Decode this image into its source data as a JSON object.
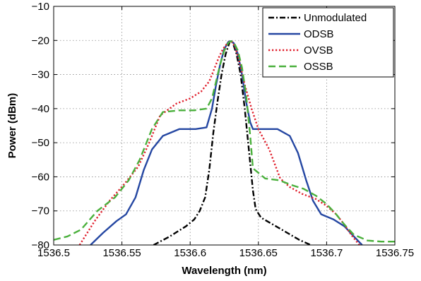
{
  "chart_data": {
    "type": "line",
    "title": "",
    "xlabel": "Wavelength (nm)",
    "ylabel": "Power (dBm)",
    "xlim": [
      1536.5,
      1536.75
    ],
    "ylim": [
      -80,
      -10
    ],
    "xticks": [
      1536.5,
      1536.55,
      1536.6,
      1536.65,
      1536.7,
      1536.75
    ],
    "xtick_labels": [
      "1536.5",
      "1536.55",
      "1536.6",
      "1536.65",
      "1536.7",
      "1536.75"
    ],
    "yticks": [
      -80,
      -70,
      -60,
      -50,
      -40,
      -30,
      -20,
      -10
    ],
    "ytick_labels": [
      "−80",
      "−70",
      "−60",
      "−50",
      "−40",
      "−30",
      "−20",
      "−10"
    ],
    "grid": true,
    "legend_position": "top-right",
    "series": [
      {
        "name": "Unmodulated",
        "color": "#000000",
        "style": "dashdot",
        "x": [
          1536.5732,
          1536.585,
          1536.597,
          1536.603,
          1536.607,
          1536.611,
          1536.614,
          1536.617,
          1536.62,
          1536.623,
          1536.626,
          1536.629,
          1536.63,
          1536.631,
          1536.634,
          1536.637,
          1536.64,
          1536.643,
          1536.646,
          1536.648,
          1536.652,
          1536.665,
          1536.68,
          1536.6883
        ],
        "y": [
          -80,
          -77.5,
          -74.5,
          -72.5,
          -70,
          -66,
          -58,
          -47,
          -38,
          -30,
          -24,
          -20.4,
          -20.2,
          -20.4,
          -24,
          -30,
          -40,
          -52,
          -64,
          -69.5,
          -72,
          -75,
          -78.5,
          -80
        ]
      },
      {
        "name": "ODSB",
        "color": "#2547a2",
        "style": "solid",
        "x": [
          1536.527,
          1536.536,
          1536.546,
          1536.553,
          1536.56,
          1536.566,
          1536.572,
          1536.58,
          1536.592,
          1536.604,
          1536.612,
          1536.616,
          1536.619,
          1536.622,
          1536.625,
          1536.628,
          1536.63,
          1536.632,
          1536.635,
          1536.638,
          1536.641,
          1536.644,
          1536.646,
          1536.65,
          1536.664,
          1536.673,
          1536.679,
          1536.685,
          1536.69,
          1536.696,
          1536.705,
          1536.713,
          1536.72,
          1536.726
        ],
        "y": [
          -80,
          -76.5,
          -73,
          -71,
          -66,
          -58,
          -52,
          -48,
          -46,
          -46,
          -45.5,
          -40,
          -33,
          -27,
          -22.5,
          -20.4,
          -20.2,
          -20.8,
          -24,
          -30,
          -38,
          -44,
          -46,
          -46,
          -46,
          -48,
          -53,
          -61,
          -67,
          -71,
          -72.5,
          -74.5,
          -77.5,
          -80
        ]
      },
      {
        "name": "OVSB",
        "color": "#e0202d",
        "style": "dotted",
        "x": [
          1536.519,
          1536.53,
          1536.541,
          1536.552,
          1536.562,
          1536.57,
          1536.578,
          1536.59,
          1536.6,
          1536.608,
          1536.614,
          1536.618,
          1536.621,
          1536.624,
          1536.627,
          1536.629,
          1536.631,
          1536.633,
          1536.636,
          1536.64,
          1536.645,
          1536.65,
          1536.658,
          1536.666,
          1536.673,
          1536.682,
          1536.692,
          1536.7,
          1536.707,
          1536.713,
          1536.718,
          1536.724
        ],
        "y": [
          -80,
          -73,
          -67,
          -62,
          -57,
          -50,
          -42,
          -38.5,
          -37,
          -35,
          -32,
          -28,
          -25,
          -22.5,
          -21,
          -20.3,
          -20.5,
          -22,
          -26,
          -33,
          -40,
          -46,
          -52,
          -60.5,
          -63,
          -65,
          -66.5,
          -68.5,
          -71,
          -74,
          -77,
          -80
        ]
      },
      {
        "name": "OSSB",
        "color": "#4ab03c",
        "style": "dashed",
        "x": [
          1536.5,
          1536.51,
          1536.52,
          1536.532,
          1536.545,
          1536.555,
          1536.563,
          1536.572,
          1536.58,
          1536.592,
          1536.603,
          1536.612,
          1536.616,
          1536.619,
          1536.622,
          1536.625,
          1536.628,
          1536.63,
          1536.632,
          1536.635,
          1536.638,
          1536.641,
          1536.644,
          1536.646,
          1536.655,
          1536.665,
          1536.675,
          1536.683,
          1536.692,
          1536.7,
          1536.707,
          1536.713,
          1536.72,
          1536.73,
          1536.74,
          1536.75
        ],
        "y": [
          -78.5,
          -77.5,
          -75.5,
          -70,
          -66,
          -61,
          -55,
          -46,
          -41,
          -40.5,
          -40.5,
          -40,
          -37,
          -32,
          -27,
          -23,
          -20.7,
          -20.2,
          -20.6,
          -23,
          -28,
          -36,
          -48,
          -57.5,
          -60.5,
          -61,
          -62.5,
          -63.5,
          -65.5,
          -68,
          -71,
          -74,
          -77,
          -78.7,
          -79,
          -79
        ]
      }
    ]
  }
}
